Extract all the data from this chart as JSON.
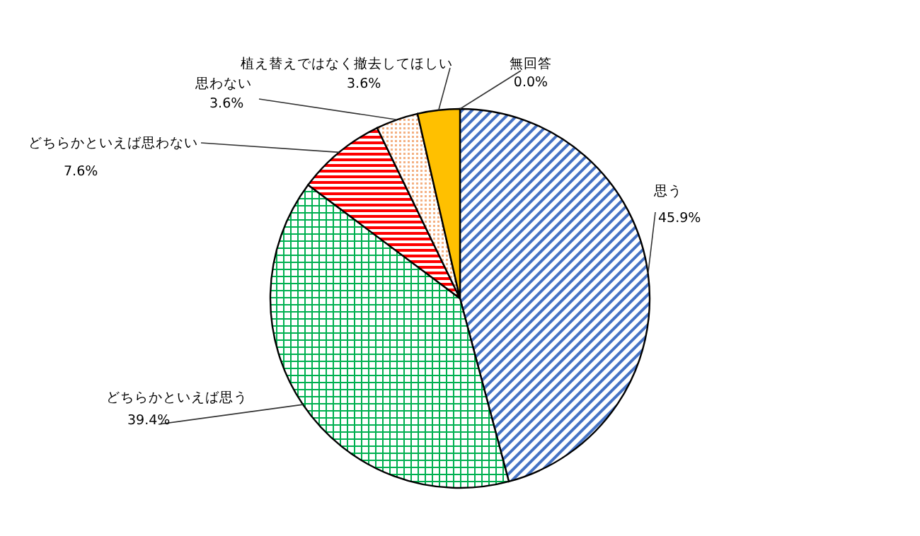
{
  "chart_data": {
    "type": "pie",
    "categories": [
      "思う",
      "どちらかといえば思う",
      "どちらかといえば思わない",
      "思わない",
      "植え替えではなく撤去してほしい",
      "無回答"
    ],
    "values": [
      45.9,
      39.4,
      7.6,
      3.6,
      3.6,
      0.0
    ],
    "value_labels": [
      "45.9%",
      "39.4%",
      "7.6%",
      "3.6%",
      "3.6%",
      "0.0%"
    ],
    "colors": [
      "#4472c4",
      "#00b050",
      "#ff0000",
      "#f4b183",
      "#ffc000",
      null
    ]
  }
}
